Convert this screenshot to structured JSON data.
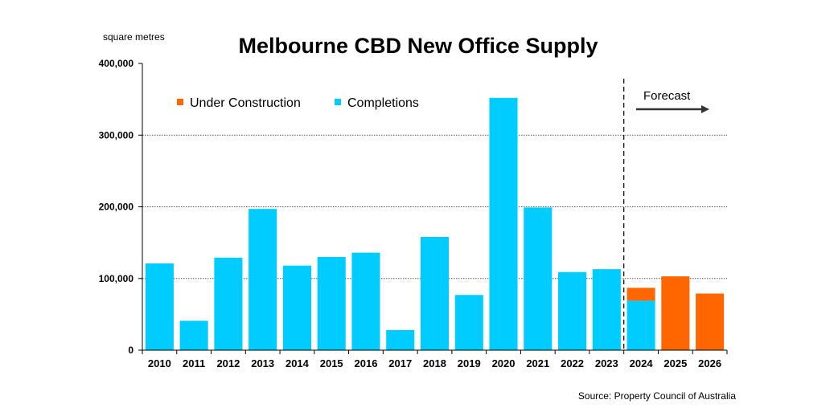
{
  "chart_data": {
    "type": "bar",
    "stacked": true,
    "title": "Melbourne CBD New Office Supply",
    "ylabel": "square metres",
    "xlabel": "",
    "ylim": [
      0,
      400000
    ],
    "yticks": [
      0,
      100000,
      200000,
      300000,
      400000
    ],
    "ytick_labels": [
      "0",
      "100,000",
      "200,000",
      "300,000",
      "400,000"
    ],
    "grid": true,
    "categories": [
      "2010",
      "2011",
      "2012",
      "2013",
      "2014",
      "2015",
      "2016",
      "2017",
      "2018",
      "2019",
      "2020",
      "2021",
      "2022",
      "2023",
      "2024",
      "2025",
      "2026"
    ],
    "series": [
      {
        "name": "Completions",
        "color": "#00ccff",
        "values": [
          121000,
          41000,
          129000,
          197000,
          118000,
          130000,
          136000,
          28000,
          158000,
          77000,
          352000,
          199000,
          109000,
          113000,
          69000,
          0,
          0
        ]
      },
      {
        "name": "Under Construction",
        "color": "#ff6600",
        "values": [
          0,
          0,
          0,
          0,
          0,
          0,
          0,
          0,
          0,
          0,
          0,
          0,
          0,
          0,
          18000,
          103000,
          79000
        ]
      }
    ],
    "legend": {
      "placement": "top-left",
      "order": [
        "Under Construction",
        "Completions"
      ]
    },
    "annotations": {
      "forecast_label": "Forecast",
      "forecast_start_category": "2024"
    },
    "source": "Source: Property Council of Australia"
  }
}
